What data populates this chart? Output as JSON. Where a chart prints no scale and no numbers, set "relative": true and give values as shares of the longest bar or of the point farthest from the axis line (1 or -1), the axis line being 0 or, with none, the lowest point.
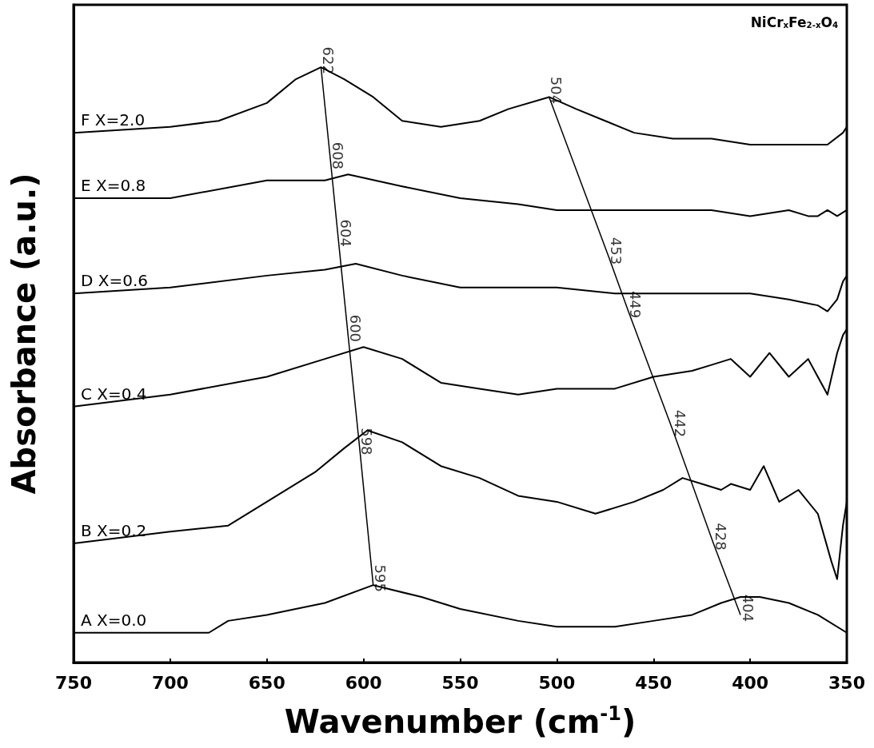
{
  "chart_data": {
    "type": "line",
    "relative": true,
    "xlabel": "Wavenumber (cm$^{-1}$)",
    "ylabel": "Absorbance (a.u.)",
    "xlim": [
      750,
      350
    ],
    "xticks": [
      750,
      700,
      650,
      600,
      550,
      500,
      450,
      400,
      350
    ],
    "grid": false,
    "legend": false,
    "marker": "none",
    "line_style": "solid",
    "series": [
      {
        "name": "A X=0.0",
        "color": "#000000",
        "x": [
          750,
          700,
          680,
          670,
          650,
          620,
          595,
          570,
          550,
          520,
          500,
          470,
          450,
          430,
          415,
          405,
          395,
          380,
          365,
          350
        ],
        "values": [
          0.05,
          0.05,
          0.05,
          0.07,
          0.08,
          0.1,
          0.13,
          0.11,
          0.09,
          0.07,
          0.06,
          0.06,
          0.07,
          0.08,
          0.1,
          0.11,
          0.11,
          0.1,
          0.08,
          0.05
        ]
      },
      {
        "name": "B X=0.2",
        "color": "#000000",
        "x": [
          750,
          700,
          670,
          650,
          625,
          610,
          598,
          580,
          560,
          540,
          520,
          500,
          480,
          460,
          445,
          435,
          425,
          415,
          410,
          400,
          393,
          385,
          375,
          365,
          358,
          355,
          352,
          350
        ],
        "values": [
          0.2,
          0.22,
          0.23,
          0.27,
          0.32,
          0.36,
          0.39,
          0.37,
          0.33,
          0.31,
          0.28,
          0.27,
          0.25,
          0.27,
          0.29,
          0.31,
          0.3,
          0.29,
          0.3,
          0.29,
          0.33,
          0.27,
          0.29,
          0.25,
          0.17,
          0.14,
          0.23,
          0.27
        ]
      },
      {
        "name": "C X=0.4",
        "color": "#000000",
        "x": [
          750,
          700,
          650,
          620,
          600,
          580,
          560,
          540,
          520,
          500,
          470,
          450,
          430,
          420,
          410,
          400,
          390,
          380,
          370,
          360,
          355,
          352,
          350
        ],
        "values": [
          0.43,
          0.45,
          0.48,
          0.51,
          0.53,
          0.51,
          0.47,
          0.46,
          0.45,
          0.46,
          0.46,
          0.48,
          0.49,
          0.5,
          0.51,
          0.48,
          0.52,
          0.48,
          0.51,
          0.45,
          0.52,
          0.55,
          0.56
        ]
      },
      {
        "name": "D X=0.6",
        "color": "#000000",
        "x": [
          750,
          700,
          650,
          620,
          604,
          580,
          550,
          520,
          500,
          470,
          450,
          430,
          400,
          380,
          365,
          360,
          355,
          352,
          350
        ],
        "values": [
          0.62,
          0.63,
          0.65,
          0.66,
          0.67,
          0.65,
          0.63,
          0.63,
          0.63,
          0.62,
          0.62,
          0.62,
          0.62,
          0.61,
          0.6,
          0.59,
          0.61,
          0.64,
          0.65
        ]
      },
      {
        "name": "E X=0.8",
        "color": "#000000",
        "x": [
          750,
          700,
          650,
          620,
          608,
          580,
          550,
          520,
          500,
          470,
          450,
          420,
          400,
          380,
          370,
          365,
          360,
          355,
          350
        ],
        "values": [
          0.78,
          0.78,
          0.81,
          0.81,
          0.82,
          0.8,
          0.78,
          0.77,
          0.76,
          0.76,
          0.76,
          0.76,
          0.75,
          0.76,
          0.75,
          0.75,
          0.76,
          0.75,
          0.76
        ]
      },
      {
        "name": "F X=2.0",
        "color": "#000000",
        "x": [
          750,
          700,
          675,
          650,
          635,
          622,
          610,
          595,
          580,
          560,
          540,
          525,
          504,
          490,
          475,
          460,
          440,
          420,
          400,
          380,
          360,
          352,
          350
        ],
        "values": [
          0.89,
          0.9,
          0.91,
          0.94,
          0.98,
          1,
          0.98,
          0.95,
          0.91,
          0.9,
          0.91,
          0.93,
          0.95,
          0.93,
          0.91,
          0.89,
          0.88,
          0.88,
          0.87,
          0.87,
          0.87,
          0.89,
          0.9
        ]
      },
      {
        "color": "#000000",
        "x": [
          622,
          617,
          613,
          608,
          602,
          595
        ],
        "values": [
          1,
          0.84,
          0.71,
          0.55,
          0.36,
          0.13
        ]
      },
      {
        "color": "#000000",
        "x": [
          504,
          473,
          463,
          440,
          419,
          405
        ],
        "values": [
          0.95,
          0.68,
          0.59,
          0.39,
          0.2,
          0.08
        ]
      }
    ],
    "annotations": [
      {
        "text": "622",
        "x": 622,
        "y": 1
      },
      {
        "text": "608",
        "x": 617,
        "y": 0.84
      },
      {
        "text": "604",
        "x": 613,
        "y": 0.71
      },
      {
        "text": "600",
        "x": 608,
        "y": 0.55
      },
      {
        "text": "598",
        "x": 602,
        "y": 0.36
      },
      {
        "text": "595",
        "x": 595,
        "y": 0.13
      },
      {
        "text": "504",
        "x": 504,
        "y": 0.95
      },
      {
        "text": "453",
        "x": 473,
        "y": 0.68
      },
      {
        "text": "449",
        "x": 463,
        "y": 0.59
      },
      {
        "text": "442",
        "x": 440,
        "y": 0.39
      },
      {
        "text": "428",
        "x": 419,
        "y": 0.2
      },
      {
        "text": "404",
        "x": 405,
        "y": 0.08
      },
      "NiCr$_{x}$Fe$_{2-x}$O$_{4}$"
    ]
  }
}
